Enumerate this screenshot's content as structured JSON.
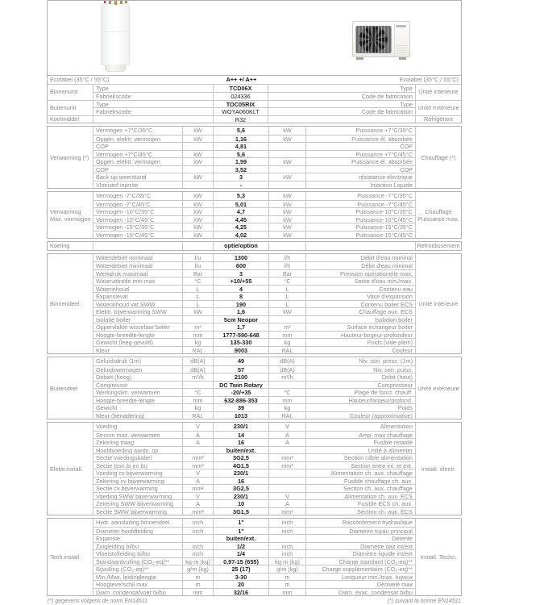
{
  "colors": {
    "border": "#b3b3b3",
    "label_text": "#8c8c8c",
    "value_text": "#1c1c1c"
  },
  "ecolabel": {
    "left": "Ecolabel (35°C / 55°C)",
    "value": "A++ +/ A++",
    "right": "Ecolabel (35°C / 55°C)"
  },
  "units_header": {
    "groups": [
      {
        "section_nl": "Binnenunit",
        "section_fr": "Unité intérieure",
        "rows": [
          {
            "label_nl": "Type",
            "value": "TCD06X",
            "bold": true,
            "label_fr": "Type"
          },
          {
            "label_nl": "Fabriekscode",
            "value": "024336",
            "bold": false,
            "label_fr": "Code de fabrication"
          }
        ]
      },
      {
        "section_nl": "Buitenunit",
        "section_fr": "Unité extérieure",
        "rows": [
          {
            "label_nl": "Type",
            "value": "TOC05RIX",
            "bold": true,
            "label_fr": "Type"
          },
          {
            "label_nl": "Fabriekscode",
            "value": "WOYA060KLT",
            "bold": false,
            "label_fr": "Code de fabrication"
          }
        ]
      },
      {
        "section_nl": "Koelmiddel",
        "section_fr": "Réfrigérant",
        "rows": [
          {
            "label_nl": "",
            "value": "R32",
            "bold": false,
            "label_fr": ""
          }
        ]
      }
    ]
  },
  "sections": [
    {
      "nl": "Verwarming (*)",
      "fr": "Chauffage (*)",
      "rows": [
        {
          "nl": "Vermogen +7°C/35°C",
          "unl": "kW",
          "val": "5,6",
          "ufr": "kW",
          "fr": "Puissance +7°C/35°C"
        },
        {
          "nl": "Opgen. elektr. vermogen",
          "unl": "kW",
          "val": "1,16",
          "ufr": "kW",
          "fr": "Puissance él. absorbée"
        },
        {
          "nl": "COP",
          "unl": "",
          "val": "4,81",
          "ufr": "",
          "fr": "COP"
        },
        {
          "nl": "Vermogen +7°C/45°C",
          "unl": "kW",
          "val": "5,6",
          "ufr": "",
          "fr": "Puissance +7°C/45°C"
        },
        {
          "nl": "Opgen. elektr. vermogen",
          "unl": "kW",
          "val": "1,59",
          "ufr": "kW",
          "fr": "Puissance él. absorbée"
        },
        {
          "nl": "COP",
          "unl": "",
          "val": "3,52",
          "ufr": "",
          "fr": "COP"
        },
        {
          "nl": "Back-up weerstand",
          "unl": "kW",
          "val": "3",
          "ufr": "kW",
          "fr": "résistance électrique"
        },
        {
          "nl": "Vloeistof injectie",
          "unl": "",
          "val": "-",
          "ufr": "",
          "fr": "Injection Liquide"
        }
      ]
    },
    {
      "nl": "Verwarming\nMax. vermogen",
      "fr": "Chauffage\nPuissance max.",
      "rows": [
        {
          "nl": "Vermogen -7°C/35°C",
          "unl": "kW",
          "val": "5,3",
          "ufr": "kW",
          "fr": "Puissance -7°C/35°C"
        },
        {
          "nl": "Vermogen -7°C/45°C",
          "unl": "kW",
          "val": "5,01",
          "ufr": "kW",
          "fr": "Puissance -7°C/45°C"
        },
        {
          "nl": "Vermogen -10°C/35°C",
          "unl": "kW",
          "val": "4,7",
          "ufr": "kW",
          "fr": "Puissance-10°C/35°C"
        },
        {
          "nl": "Vermogen -10°C/45°C",
          "unl": "kW",
          "val": "4,45",
          "ufr": "kW",
          "fr": "Puissance-10°C/45°C"
        },
        {
          "nl": "Vermogen -15°C/35°C",
          "unl": "kW",
          "val": "4,25",
          "ufr": "kW",
          "fr": "Puissance-15°C/35°C"
        },
        {
          "nl": "Vermogen -15°C/45°C",
          "unl": "kW",
          "val": "4,02",
          "ufr": "kW",
          "fr": "Puissance-15°C/45°C"
        }
      ]
    },
    {
      "nl": "Koeling",
      "fr": "Refroidissement",
      "rows": [
        {
          "nl": "",
          "unl": "",
          "val": "optie/option",
          "ufr": "",
          "fr": ""
        }
      ]
    },
    {
      "nl": "Binnendeel",
      "fr": "Unité intérieure",
      "rows": [
        {
          "nl": "Waterdebiet nominaal",
          "unl": "l/u",
          "val": "1300",
          "ufr": "l/h",
          "fr": "Débit d'eau nominal"
        },
        {
          "nl": "Waterdebiet minimaal",
          "unl": "l/u",
          "val": "600",
          "ufr": "l/h",
          "fr": "Débit d'eau minimal"
        },
        {
          "nl": "Werkdruk maximaal",
          "unl": "Bar",
          "val": "3",
          "ufr": "Bar",
          "fr": "Pression opérationelle max."
        },
        {
          "nl": "Wateruittrede min-max",
          "unl": "°C",
          "val": "+10/+55",
          "ufr": "°C",
          "fr": "Sortie d'eau min./max."
        },
        {
          "nl": "Waterinhoud",
          "unl": "L",
          "val": "4",
          "ufr": "L",
          "fr": "Contenu eau"
        },
        {
          "nl": "Expansievat",
          "unl": "L",
          "val": "8",
          "ufr": "L",
          "fr": "Vase d'expansion"
        },
        {
          "nl": "Waterinhoud vat SWW",
          "unl": "L",
          "val": "190",
          "ufr": "L",
          "fr": "Contenu boiler ECS"
        },
        {
          "nl": "Elektr. bijverwarming SWW",
          "unl": "kW",
          "val": "1,6",
          "ufr": "kW",
          "fr": "Chauffage aux. ECS"
        },
        {
          "nl": "Isolatie boiler",
          "unl": "",
          "val": "5cm Neopor",
          "ufr": "",
          "fr": "Isolation boiler"
        },
        {
          "nl": "Oppervlakte wisselaar boiler",
          "unl": "m²",
          "val": "1,7",
          "ufr": "m²",
          "fr": "Surface echangeur boiler"
        },
        {
          "nl": "Hoogte-breedte-lengte",
          "unl": "mm",
          "val": "1777-590-648",
          "ufr": "mm",
          "fr": "Hauteur-largeur-profondeur"
        },
        {
          "nl": "Gewicht (leeg-gevuld)",
          "unl": "kg",
          "val": "135-330",
          "ufr": "kg",
          "fr": "Poids (vide-plein)"
        },
        {
          "nl": "Kleur",
          "unl": "RAL",
          "val": "9003",
          "ufr": "RAL",
          "fr": "Couleur"
        }
      ]
    },
    {
      "nl": "Buitendeel",
      "fr": "Unité extérieure",
      "rows": [
        {
          "nl": "Geluidsdruk (1m)",
          "unl": "dB(A)",
          "val": "49",
          "ufr": "dB(A)",
          "fr": "Niv. son. press. (1m)"
        },
        {
          "nl": "Geluidsvermogen",
          "unl": "dB(A)",
          "val": "57",
          "ufr": "dB(A)",
          "fr": "Niv. son. puiss."
        },
        {
          "nl": "Debiet (hoog)",
          "unl": "m³/h",
          "val": "2100",
          "ufr": "m³/h",
          "fr": "Débit (haut)"
        },
        {
          "nl": "Compressor",
          "unl": "",
          "val": "DC Twin Rotary",
          "ufr": "",
          "fr": "Compresseur"
        },
        {
          "nl": "Werkingslim. verwarmen",
          "unl": "°C",
          "val": "-20/+35",
          "ufr": "°C",
          "fr": "Plage de fonct. chauff."
        },
        {
          "nl": "Hoogte-breedte-lengte",
          "unl": "mm",
          "val": "632-886-353",
          "ufr": "mm",
          "fr": "Hauteur/largeur/profond."
        },
        {
          "nl": "Gewicht",
          "unl": "kg",
          "val": "39",
          "ufr": "kg",
          "fr": "Poids"
        },
        {
          "nl": "Kleur (benadering)",
          "unl": "RAL",
          "val": "1013",
          "ufr": "RAL",
          "fr": "Couleur (approximative)"
        }
      ]
    },
    {
      "nl": "Elektr.install.",
      "fr": "Install. électr.",
      "rows": [
        {
          "nl": "Voeding",
          "unl": "V",
          "val": "230/1",
          "ufr": "V",
          "fr": "Alimentation"
        },
        {
          "nl": "Stroom max. verwarmen",
          "unl": "A",
          "val": "14",
          "ufr": "A",
          "fr": "Amp. max chauffage"
        },
        {
          "nl": "Zekering traag",
          "unl": "A",
          "val": "16",
          "ufr": "A",
          "fr": "Fusible retardé"
        },
        {
          "nl": "Hoofdvoeding aanbr. op",
          "unl": "",
          "val": "buiten/ext.",
          "ufr": "",
          "fr": "Unité à alimenter"
        },
        {
          "nl": "Sectie voedingskabel",
          "unl": "mm²",
          "val": "3G2,5",
          "ufr": "mm²",
          "fr": "Section câble alimentation"
        },
        {
          "nl": "Sectie tssn bi en bu",
          "unl": "mm²",
          "val": "4G1,5",
          "ufr": "mm²",
          "fr": "Section entre int. et ext."
        },
        {
          "nl": "Voeding cv bijverwarming",
          "unl": "V",
          "val": "230/1",
          "ufr": "",
          "fr": "Alimentation ch. aux. chauffage"
        },
        {
          "nl": "Zekering cv bijverwarming",
          "unl": "A",
          "val": "16",
          "ufr": "",
          "fr": "Fusible chauffage ch. aux."
        },
        {
          "nl": "Sectie cv bijverwarming",
          "unl": "mm²",
          "val": "3G2,5",
          "ufr": "",
          "fr": "Section ch. aux. chauffage"
        },
        {
          "nl": "Voeding SWW bijverwarming",
          "unl": "V",
          "val": "230/1",
          "ufr": "V",
          "fr": "Alimentation ch. aux. ECS"
        },
        {
          "nl": "Zekering SWW bijverwarming",
          "unl": "A",
          "val": "10",
          "ufr": "A",
          "fr": "Fusible ECS ch. aux."
        },
        {
          "nl": "Sectie SWW bijverwarming",
          "unl": "mm²",
          "val": "3G1,5",
          "ufr": "mm²",
          "fr": "Section ch. aux. ECS"
        }
      ]
    },
    {
      "nl": "Tech.install.",
      "fr": "Install. Techn.",
      "rows": [
        {
          "nl": "Hydr. aansluiting binnendeel",
          "unl": "inch",
          "val": "1\"",
          "ufr": "inch",
          "fr": "Raccordement hydraulique"
        },
        {
          "nl": "Diameter hoofdleiding",
          "unl": "inch",
          "val": "1\"",
          "ufr": "inch",
          "fr": "Diamètre tuyau principal"
        },
        {
          "nl": "Expansie",
          "unl": "",
          "val": "buiten/ext.",
          "ufr": "",
          "fr": "Détente"
        },
        {
          "nl": "Zuigleiding bi/bu",
          "unl": "inch",
          "val": "1/2",
          "ufr": "inch",
          "fr": "Diamètre gaz int/ext"
        },
        {
          "nl": "Vloeistofleiding bi/bu",
          "unl": "inch",
          "val": "1/4",
          "ufr": "inch",
          "fr": "Diamètre liquide int/ext"
        },
        {
          "nl": "Standaardvulling (CO₂-eq)**",
          "unl": "kg-m (kg)",
          "val": "0,97-15 (655)",
          "ufr": "kg-m (kg)",
          "fr": "Charge standard (CO₂-eq)**"
        },
        {
          "nl": "Bijvulling (CO₂-eq)**",
          "unl": "g/m (kg)",
          "val": "25 (17)",
          "ufr": "g/m (kg)",
          "fr": "Charge supplémentaire (CO₂-eq)**"
        },
        {
          "nl": "Min./Max. leidinglengte",
          "unl": "m",
          "val": "3-30",
          "ufr": "m",
          "fr": "Longueur min./max. tuyaux"
        },
        {
          "nl": "Hoogteverschil max",
          "unl": "m",
          "val": "20",
          "ufr": "m",
          "fr": "Dénivelé max"
        },
        {
          "nl": "Diam. condensafvoer bi/bu",
          "unl": "mm",
          "val": "32/16",
          "ufr": "mm",
          "fr": "Diam. évac. condensat bi/bu"
        }
      ]
    }
  ],
  "footnotes": {
    "left": "(*) gegevens volgens de norm EN14511",
    "right": "(*) suivant la norme EN14511"
  }
}
